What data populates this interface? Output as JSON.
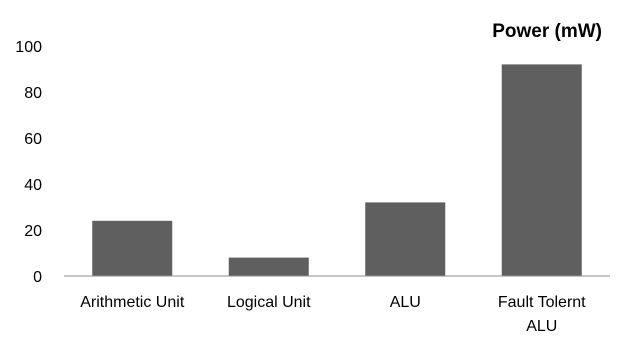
{
  "chart_data": {
    "type": "bar",
    "title": "Power (mW)",
    "categories": [
      [
        "Arithmetic Unit"
      ],
      [
        "Logical Unit"
      ],
      [
        "ALU"
      ],
      [
        "Fault Tolernt",
        "ALU"
      ]
    ],
    "values": [
      24,
      8,
      32,
      92
    ],
    "ylim": [
      0,
      100
    ],
    "yticks": [
      "0",
      "20",
      "40",
      "60",
      "80",
      "100"
    ],
    "legend": "none",
    "grid": false,
    "bar_color": "#5f5f5f",
    "axis_color": "#8c8c8c"
  }
}
